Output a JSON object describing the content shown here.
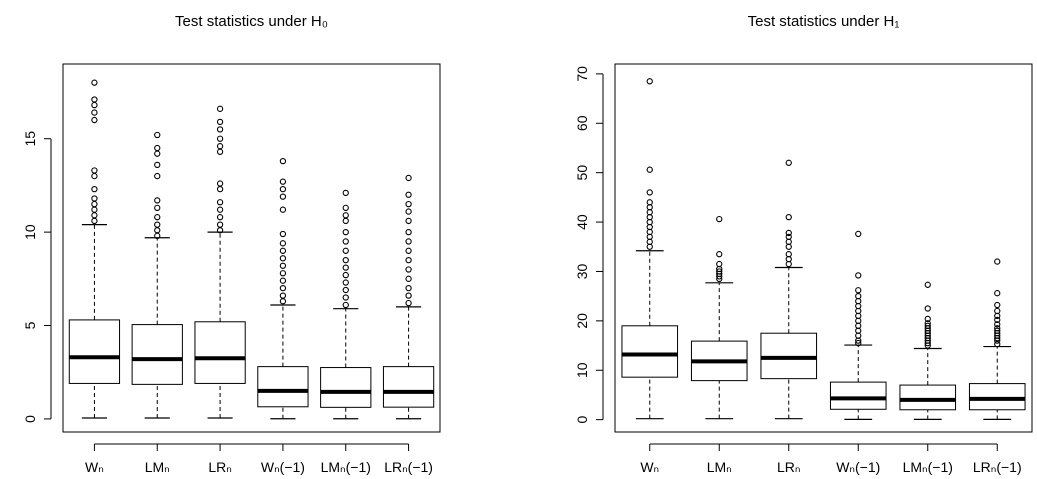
{
  "chart_data": [
    {
      "type": "box",
      "title": "Test statistics under H₀",
      "categories": [
        "Wₙ",
        "LMₙ",
        "LRₙ",
        "Wₙ(−1)",
        "LMₙ(−1)",
        "LRₙ(−1)"
      ],
      "ylim": [
        -0.7,
        19
      ],
      "yticks": [
        0,
        5,
        10,
        15
      ],
      "boxes": [
        {
          "min": 0.05,
          "q1": 1.9,
          "median": 3.3,
          "q3": 5.3,
          "max": 10.4,
          "outliers": [
            10.6,
            10.9,
            11.2,
            11.5,
            11.8,
            12.3,
            13.0,
            13.3,
            16.0,
            16.4,
            16.8,
            17.1,
            18.0
          ]
        },
        {
          "min": 0.05,
          "q1": 1.85,
          "median": 3.2,
          "q3": 5.05,
          "max": 9.7,
          "outliers": [
            9.8,
            10.1,
            10.4,
            10.8,
            11.3,
            11.7,
            13.0,
            13.6,
            14.2,
            14.5,
            15.2
          ]
        },
        {
          "min": 0.05,
          "q1": 1.9,
          "median": 3.25,
          "q3": 5.2,
          "max": 10.0,
          "outliers": [
            10.1,
            10.4,
            10.8,
            11.2,
            11.6,
            12.3,
            12.6,
            14.3,
            14.6,
            15.0,
            15.5,
            15.9,
            16.6
          ]
        },
        {
          "min": 0.01,
          "q1": 0.65,
          "median": 1.5,
          "q3": 2.8,
          "max": 6.1,
          "outliers": [
            6.3,
            6.6,
            7.0,
            7.4,
            7.8,
            8.2,
            8.6,
            9.0,
            9.4,
            9.9,
            11.2,
            11.9,
            12.3,
            12.7,
            13.8
          ]
        },
        {
          "min": 0.01,
          "q1": 0.62,
          "median": 1.45,
          "q3": 2.75,
          "max": 5.9,
          "outliers": [
            6.1,
            6.5,
            6.9,
            7.3,
            7.7,
            8.1,
            8.5,
            9.0,
            9.5,
            10.0,
            10.6,
            10.9,
            11.3,
            12.1
          ]
        },
        {
          "min": 0.01,
          "q1": 0.63,
          "median": 1.45,
          "q3": 2.8,
          "max": 6.0,
          "outliers": [
            6.2,
            6.6,
            7.0,
            7.5,
            8.0,
            8.5,
            9.0,
            9.5,
            10.0,
            10.6,
            11.1,
            11.5,
            12.0,
            12.9
          ]
        }
      ]
    },
    {
      "type": "box",
      "title": "Test statistics under H₁",
      "categories": [
        "Wₙ",
        "LMₙ",
        "LRₙ",
        "Wₙ(−1)",
        "LMₙ(−1)",
        "LRₙ(−1)"
      ],
      "ylim": [
        -2.5,
        72
      ],
      "yticks": [
        0,
        10,
        20,
        30,
        40,
        50,
        60,
        70
      ],
      "boxes": [
        {
          "min": 0.2,
          "q1": 8.6,
          "median": 13.2,
          "q3": 19.0,
          "max": 34.2,
          "outliers": [
            35,
            36,
            37,
            38,
            39,
            40,
            41,
            42,
            43,
            44,
            46,
            50.6,
            68.5
          ]
        },
        {
          "min": 0.2,
          "q1": 7.9,
          "median": 11.8,
          "q3": 15.9,
          "max": 27.7,
          "outliers": [
            28.5,
            29,
            29.5,
            30,
            30.5,
            31.5,
            33.5,
            40.6
          ]
        },
        {
          "min": 0.2,
          "q1": 8.3,
          "median": 12.5,
          "q3": 17.5,
          "max": 30.8,
          "outliers": [
            31.5,
            32.5,
            33.5,
            35,
            36,
            37,
            37.8,
            41,
            52
          ]
        },
        {
          "min": 0.05,
          "q1": 2.1,
          "median": 4.3,
          "q3": 7.6,
          "max": 15.1,
          "outliers": [
            15.5,
            16,
            17,
            18,
            19,
            20,
            21,
            22,
            23,
            24,
            25,
            26.2,
            29.2,
            37.6
          ]
        },
        {
          "min": 0.05,
          "q1": 2.0,
          "median": 4.0,
          "q3": 7.0,
          "max": 14.4,
          "outliers": [
            15,
            15.5,
            16,
            16.5,
            17,
            17.5,
            18,
            18.5,
            19,
            19.5,
            20.4,
            22.5,
            27.3
          ]
        },
        {
          "min": 0.05,
          "q1": 2.0,
          "median": 4.2,
          "q3": 7.3,
          "max": 14.8,
          "outliers": [
            15.3,
            16,
            16.5,
            17,
            17.5,
            18,
            18.5,
            19.3,
            20.2,
            21,
            22,
            23.2,
            25.6,
            32
          ]
        }
      ]
    }
  ]
}
